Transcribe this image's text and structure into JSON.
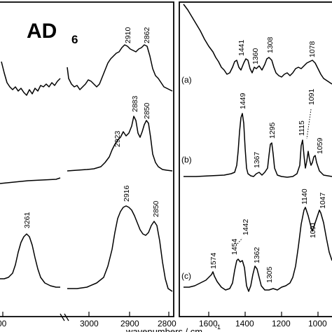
{
  "chart_data": [
    {
      "panel": "left",
      "type": "line",
      "title": "AD",
      "title_subscript": "6",
      "x_ticks": [
        "00",
        "3000",
        "2900",
        "2800"
      ],
      "traces": [
        {
          "id": "a",
          "peaks": [
            {
              "x": 2910,
              "label": "2910"
            },
            {
              "x": 2862,
              "label": "2862"
            }
          ]
        },
        {
          "id": "b",
          "peaks": [
            {
              "x": 2923,
              "label": "2923"
            },
            {
              "x": 2883,
              "label": "2883"
            },
            {
              "x": 2850,
              "label": "2850"
            }
          ]
        },
        {
          "id": "c",
          "peaks": [
            {
              "x": 3261,
              "label": "3261"
            },
            {
              "x": 2916,
              "label": "2916"
            },
            {
              "x": 2850,
              "label": "2850"
            }
          ]
        }
      ]
    },
    {
      "panel": "right",
      "type": "line",
      "x_ticks": [
        "1600",
        "1400",
        "1200",
        "1000"
      ],
      "traces": [
        {
          "id": "a",
          "label": "(a)",
          "peaks": [
            {
              "x": 1441,
              "label": "1441"
            },
            {
              "x": 1360,
              "label": "1360"
            },
            {
              "x": 1308,
              "label": "1308"
            },
            {
              "x": 1078,
              "label": "1078"
            }
          ]
        },
        {
          "id": "b",
          "label": "(b)",
          "peaks": [
            {
              "x": 1449,
              "label": "1449"
            },
            {
              "x": 1367,
              "label": "1367"
            },
            {
              "x": 1295,
              "label": "1295"
            },
            {
              "x": 1115,
              "label": "1115"
            },
            {
              "x": 1091,
              "label": "1091"
            },
            {
              "x": 1059,
              "label": "1059"
            }
          ]
        },
        {
          "id": "c",
          "label": "(c)",
          "peaks": [
            {
              "x": 1574,
              "label": "1574"
            },
            {
              "x": 1454,
              "label": "1454"
            },
            {
              "x": 1442,
              "label": "1442"
            },
            {
              "x": 1362,
              "label": "1362"
            },
            {
              "x": 1305,
              "label": "1305"
            },
            {
              "x": 1140,
              "label": "1140"
            },
            {
              "x": 1091,
              "label": "1091"
            },
            {
              "x": 1047,
              "label": "1047"
            }
          ]
        }
      ]
    }
  ],
  "xlabel": "wavenumbers / cm",
  "xlabel_superscript": "-1"
}
